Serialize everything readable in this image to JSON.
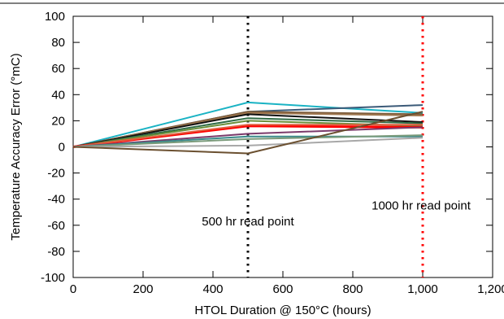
{
  "chart_data": {
    "type": "line",
    "title": "",
    "xlabel": "HTOL Duration @ 150°C (hours)",
    "ylabel": "Temperature Accuracy Error (°mC)",
    "xlim": [
      0,
      1200
    ],
    "ylim": [
      -100,
      100
    ],
    "x_ticks": [
      0,
      200,
      400,
      600,
      800,
      1000,
      1200
    ],
    "x_tick_labels": [
      "0",
      "200",
      "400",
      "600",
      "800",
      "1,000",
      "1,200"
    ],
    "y_ticks": [
      -100,
      -80,
      -60,
      -40,
      -20,
      0,
      20,
      40,
      60,
      80,
      100
    ],
    "y_tick_labels": [
      "-100",
      "-80",
      "-60",
      "-40",
      "-20",
      "0",
      "20",
      "40",
      "60",
      "80",
      "100"
    ],
    "grid": false,
    "x": [
      0,
      500,
      1000
    ],
    "series": [
      {
        "color": "#1ab3c4",
        "values": [
          0,
          34,
          26
        ]
      },
      {
        "color": "#3b5a78",
        "values": [
          0,
          27,
          32
        ]
      },
      {
        "color": "#7a5a3a",
        "values": [
          0,
          27,
          25
        ]
      },
      {
        "color": "#a07850",
        "values": [
          0,
          26,
          24
        ]
      },
      {
        "color": "#111111",
        "values": [
          0,
          25,
          19
        ]
      },
      {
        "color": "#2f6b45",
        "values": [
          0,
          22,
          18
        ]
      },
      {
        "color": "#6b8f3a",
        "values": [
          0,
          20,
          16
        ]
      },
      {
        "color": "#ff0000",
        "values": [
          0,
          16,
          15
        ],
        "width": 3
      },
      {
        "color": "#e06040",
        "values": [
          0,
          17,
          17
        ]
      },
      {
        "color": "#7b3a6b",
        "values": [
          0,
          10,
          15
        ]
      },
      {
        "color": "#3a8a8a",
        "values": [
          0,
          8,
          8
        ]
      },
      {
        "color": "#7a9a7a",
        "values": [
          0,
          6,
          9
        ]
      },
      {
        "color": "#a8a8a8",
        "values": [
          0,
          1,
          7
        ]
      },
      {
        "color": "#6b5030",
        "values": [
          0,
          -5,
          27
        ]
      }
    ],
    "vlines": [
      {
        "x": 500,
        "color": "#000000"
      },
      {
        "x": 1000,
        "color": "#ff0000"
      }
    ],
    "annotations": [
      {
        "text": "500 hr read point",
        "x": 500,
        "y": -57
      },
      {
        "text": "1000 hr read point",
        "x": 1000,
        "y": -45
      }
    ]
  }
}
